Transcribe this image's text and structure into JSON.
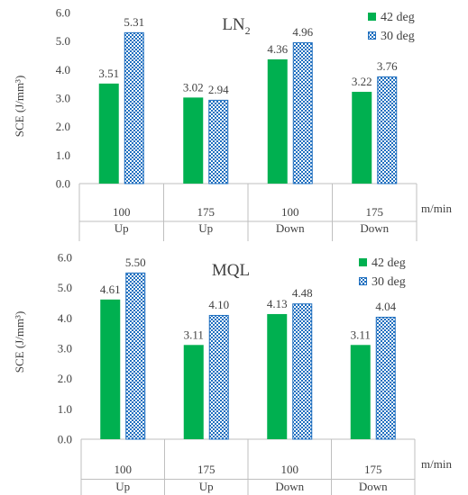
{
  "chart_data": [
    {
      "type": "bar",
      "title_main": "LN",
      "title_sub": "2",
      "ylabel": "SCE (J/mm³)",
      "ylim": [
        0,
        6
      ],
      "yticks": [
        "0.0",
        "1.0",
        "2.0",
        "3.0",
        "4.0",
        "5.0",
        "6.0"
      ],
      "unit": "m/min",
      "categories": [
        {
          "speed": "100",
          "dir": "Up"
        },
        {
          "speed": "175",
          "dir": "Up"
        },
        {
          "speed": "100",
          "dir": "Down"
        },
        {
          "speed": "175",
          "dir": "Down"
        }
      ],
      "series": [
        {
          "name": "42 deg",
          "values": [
            3.51,
            3.02,
            4.36,
            3.22
          ],
          "labels": [
            "3.51",
            "3.02",
            "4.36",
            "3.22"
          ],
          "color": "#00b050"
        },
        {
          "name": "30 deg",
          "values": [
            5.31,
            2.94,
            4.96,
            3.76
          ],
          "labels": [
            "5.31",
            "2.94",
            "4.96",
            "3.76"
          ],
          "color": "#1f6fbf"
        }
      ],
      "legend": "top-right",
      "grid": false
    },
    {
      "type": "bar",
      "title_main": "MQL",
      "title_sub": "",
      "ylabel": "SCE (J/mm³)",
      "ylim": [
        0,
        6
      ],
      "yticks": [
        "0.0",
        "1.0",
        "2.0",
        "3.0",
        "4.0",
        "5.0",
        "6.0"
      ],
      "unit": "m/min",
      "categories": [
        {
          "speed": "100",
          "dir": "Up"
        },
        {
          "speed": "175",
          "dir": "Up"
        },
        {
          "speed": "100",
          "dir": "Down"
        },
        {
          "speed": "175",
          "dir": "Down"
        }
      ],
      "series": [
        {
          "name": "42 deg",
          "values": [
            4.61,
            3.11,
            4.13,
            3.11
          ],
          "labels": [
            "4.61",
            "3.11",
            "4.13",
            "3.11"
          ],
          "color": "#00b050"
        },
        {
          "name": "30 deg",
          "values": [
            5.5,
            4.1,
            4.48,
            4.04
          ],
          "labels": [
            "5.50",
            "4.10",
            "4.48",
            "4.04"
          ],
          "color": "#1f6fbf"
        }
      ],
      "legend": "top-right",
      "grid": false
    }
  ]
}
